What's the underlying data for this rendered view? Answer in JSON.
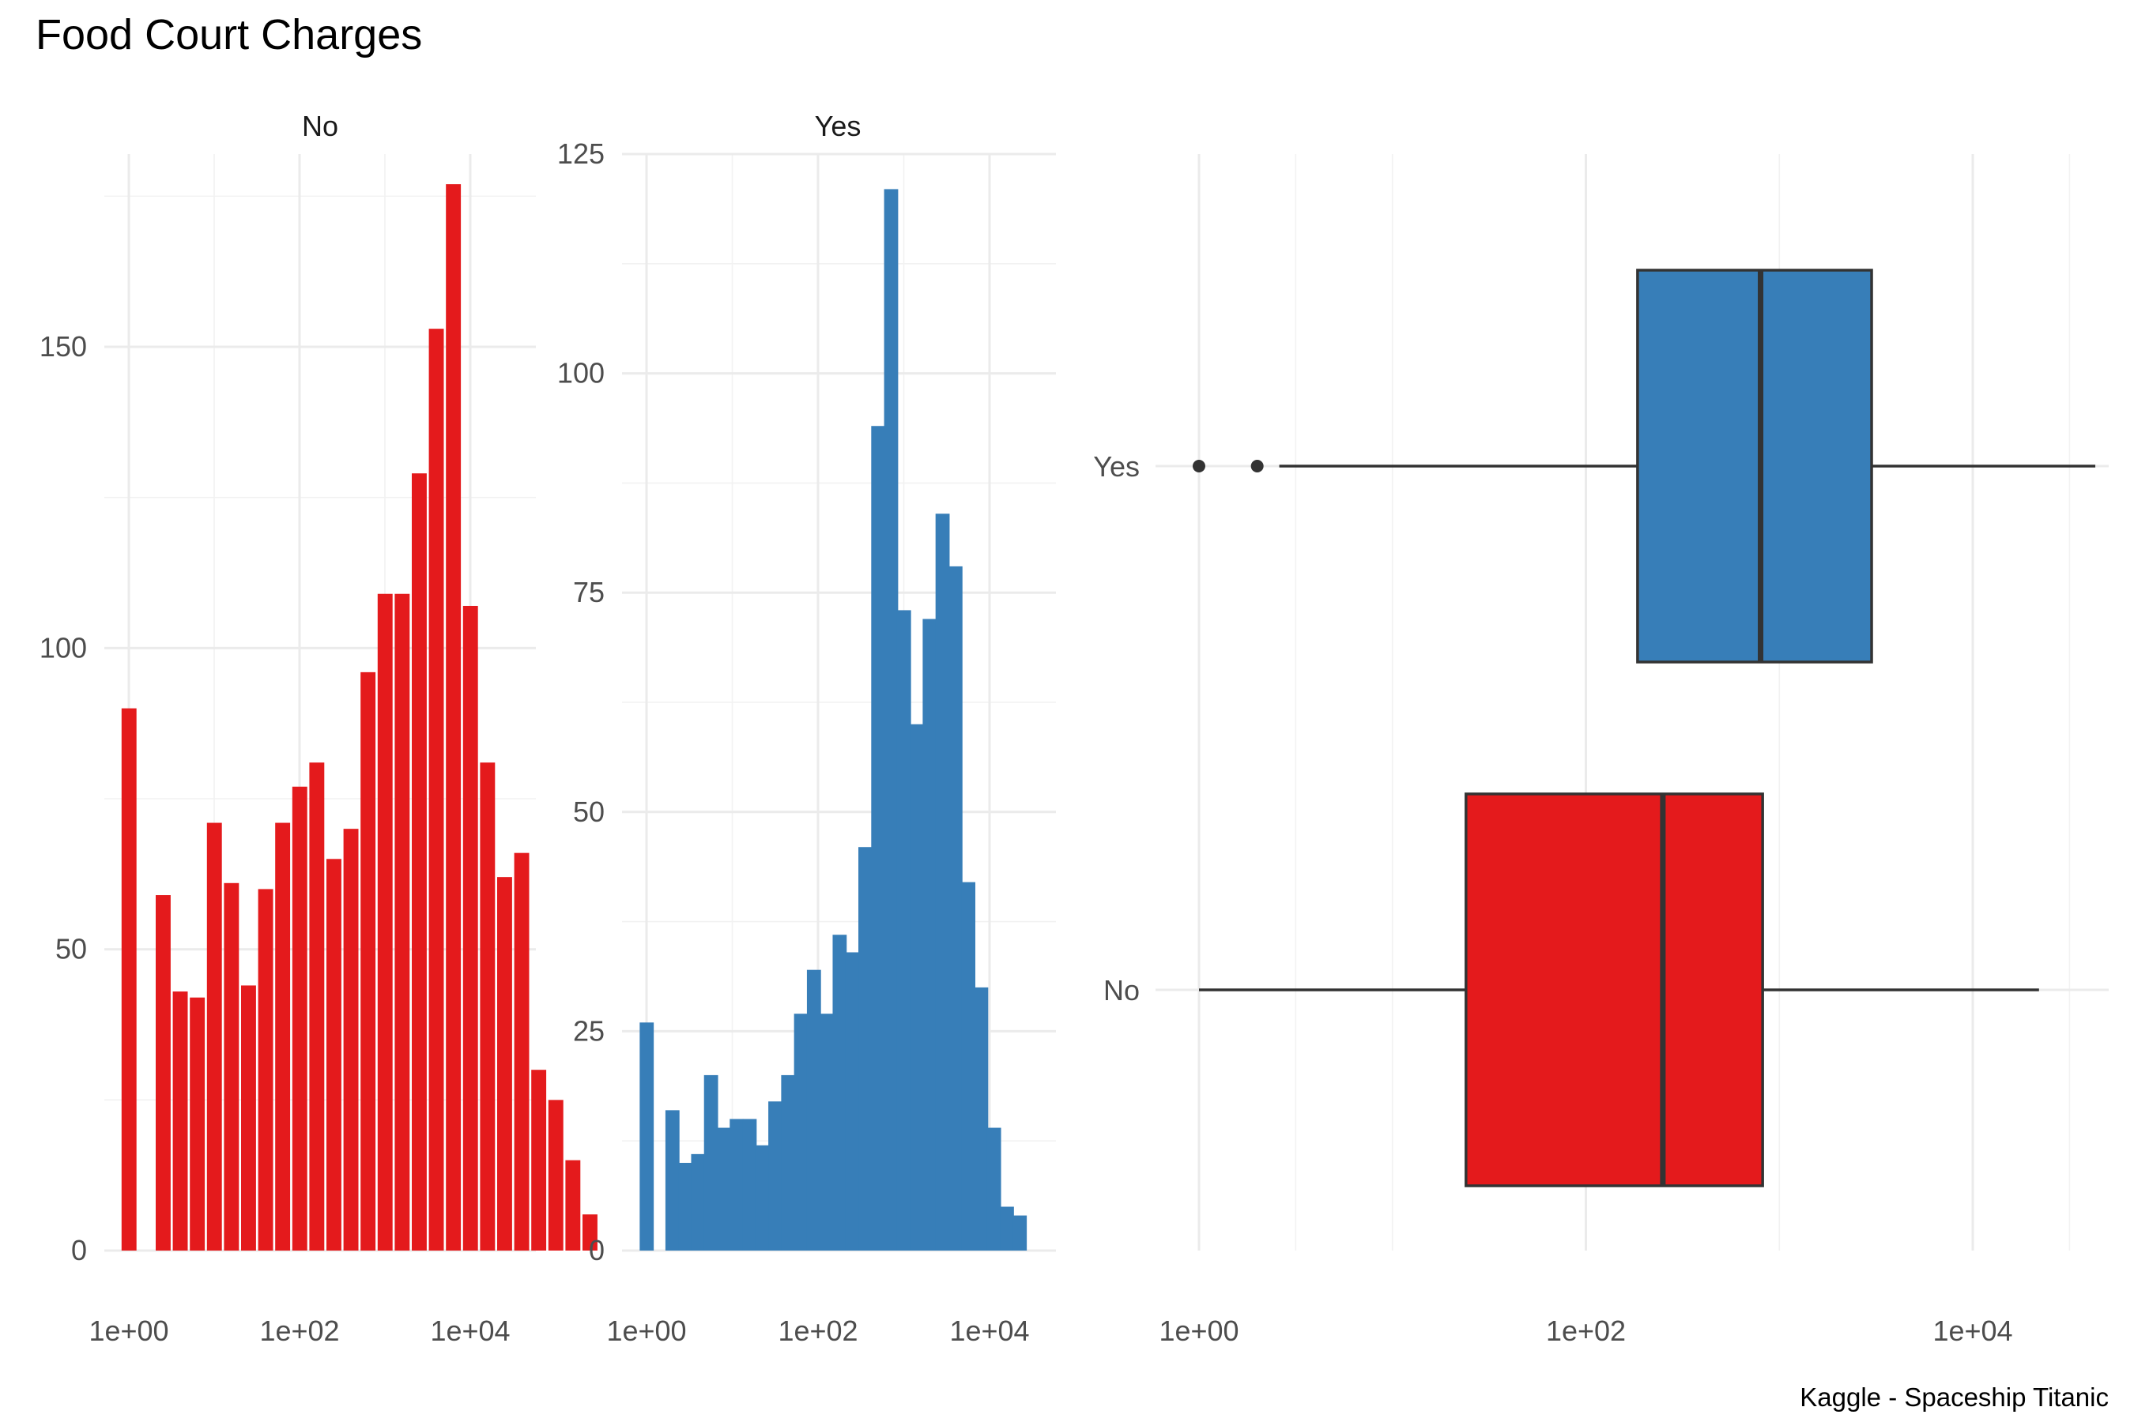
{
  "chart_data": {
    "title": "Food Court Charges",
    "caption": "Kaggle - Spaceship Titanic",
    "colors": {
      "No": "#E41A1C",
      "Yes": "#377EB8"
    },
    "histograms": [
      {
        "type": "bar",
        "facet": "No",
        "scale": "log10",
        "x_ticks": [
          "1e+00",
          "1e+02",
          "1e+04"
        ],
        "y_ticks": [
          "0",
          "50",
          "100",
          "150"
        ],
        "ylim": [
          0,
          182
        ],
        "bins": [
          {
            "x": 0.0,
            "count": 90
          },
          {
            "x": 0.2,
            "count": 0
          },
          {
            "x": 0.4,
            "count": 59
          },
          {
            "x": 0.6,
            "count": 43
          },
          {
            "x": 0.8,
            "count": 42
          },
          {
            "x": 1.0,
            "count": 71
          },
          {
            "x": 1.2,
            "count": 61
          },
          {
            "x": 1.4,
            "count": 44
          },
          {
            "x": 1.6,
            "count": 60
          },
          {
            "x": 1.8,
            "count": 71
          },
          {
            "x": 2.0,
            "count": 77
          },
          {
            "x": 2.2,
            "count": 81
          },
          {
            "x": 2.4,
            "count": 65
          },
          {
            "x": 2.6,
            "count": 70
          },
          {
            "x": 2.8,
            "count": 96
          },
          {
            "x": 3.0,
            "count": 109
          },
          {
            "x": 3.2,
            "count": 109
          },
          {
            "x": 3.4,
            "count": 129
          },
          {
            "x": 3.6,
            "count": 153
          },
          {
            "x": 3.8,
            "count": 177
          },
          {
            "x": 4.0,
            "count": 107
          },
          {
            "x": 4.2,
            "count": 81
          },
          {
            "x": 4.4,
            "count": 62
          },
          {
            "x": 4.6,
            "count": 66
          },
          {
            "x": 4.8,
            "count": 30
          },
          {
            "x": 5.0,
            "count": 25
          },
          {
            "x": 5.2,
            "count": 15
          },
          {
            "x": 5.4,
            "count": 6
          }
        ]
      },
      {
        "type": "bar",
        "facet": "Yes",
        "scale": "log10",
        "x_ticks": [
          "1e+00",
          "1e+02",
          "1e+04"
        ],
        "y_ticks": [
          "0",
          "25",
          "50",
          "75",
          "100",
          "125"
        ],
        "ylim": [
          0,
          125
        ],
        "bins": [
          {
            "x": 0.0,
            "count": 26
          },
          {
            "x": 0.15,
            "count": 0
          },
          {
            "x": 0.3,
            "count": 16
          },
          {
            "x": 0.45,
            "count": 10
          },
          {
            "x": 0.6,
            "count": 11
          },
          {
            "x": 0.75,
            "count": 20
          },
          {
            "x": 0.9,
            "count": 14
          },
          {
            "x": 1.05,
            "count": 15
          },
          {
            "x": 1.2,
            "count": 15
          },
          {
            "x": 1.35,
            "count": 12
          },
          {
            "x": 1.5,
            "count": 17
          },
          {
            "x": 1.65,
            "count": 20
          },
          {
            "x": 1.8,
            "count": 27
          },
          {
            "x": 1.95,
            "count": 32
          },
          {
            "x": 2.1,
            "count": 27
          },
          {
            "x": 2.25,
            "count": 36
          },
          {
            "x": 2.4,
            "count": 34
          },
          {
            "x": 2.55,
            "count": 46
          },
          {
            "x": 2.7,
            "count": 94
          },
          {
            "x": 2.85,
            "count": 121
          },
          {
            "x": 3.0,
            "count": 73
          },
          {
            "x": 3.15,
            "count": 60
          },
          {
            "x": 3.3,
            "count": 72
          },
          {
            "x": 3.45,
            "count": 84
          },
          {
            "x": 3.6,
            "count": 78
          },
          {
            "x": 3.75,
            "count": 42
          },
          {
            "x": 3.9,
            "count": 30
          },
          {
            "x": 4.05,
            "count": 14
          },
          {
            "x": 4.2,
            "count": 5
          },
          {
            "x": 4.35,
            "count": 4
          }
        ]
      }
    ],
    "boxplot": {
      "type": "boxplot",
      "scale": "log10",
      "x_ticks": [
        "1e+00",
        "1e+02",
        "1e+04"
      ],
      "categories": [
        "Yes",
        "No"
      ],
      "boxes": [
        {
          "name": "Yes",
          "whisker_low": 2.6,
          "q1": 185,
          "median": 800,
          "q3": 3000,
          "whisker_high": 43000,
          "outliers": [
            1,
            2
          ]
        },
        {
          "name": "No",
          "whisker_low": 1,
          "q1": 24,
          "median": 250,
          "q3": 820,
          "whisker_high": 22000,
          "outliers": []
        }
      ]
    }
  }
}
